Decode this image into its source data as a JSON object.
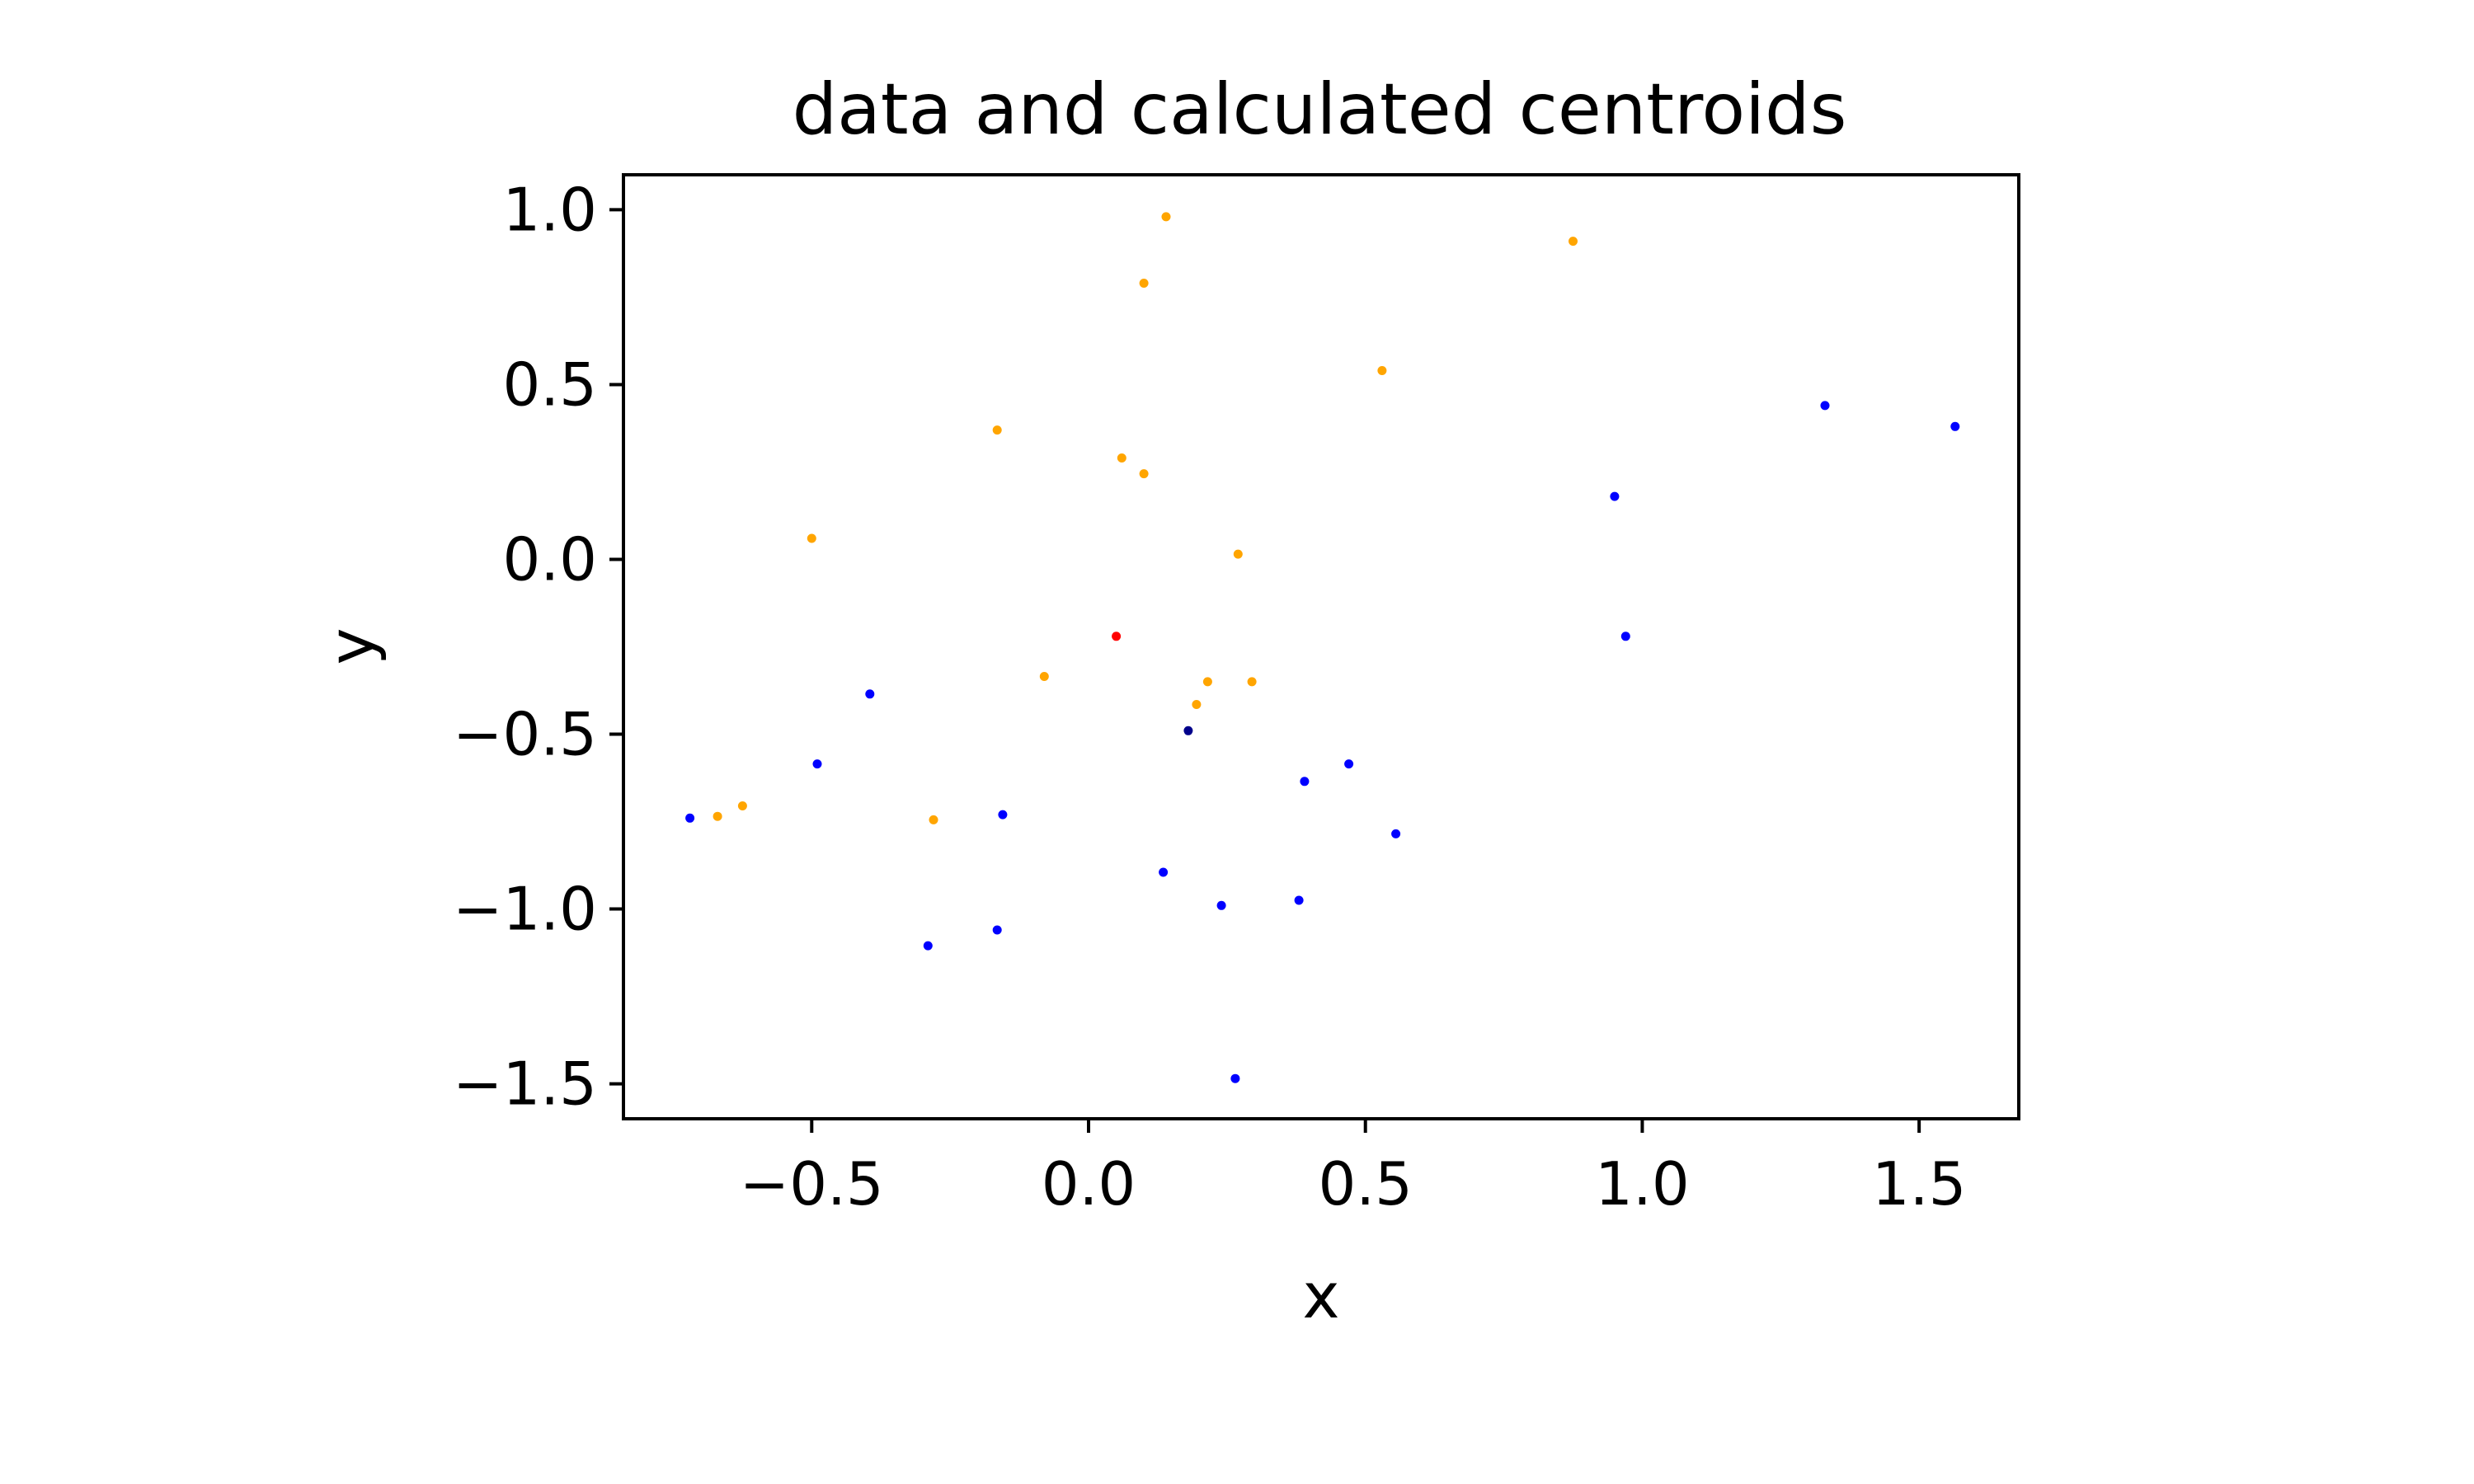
{
  "chart_data": {
    "type": "scatter",
    "title": "data and calculated centroids",
    "xlabel": "x",
    "ylabel": "y",
    "xlim": [
      -0.84,
      1.68
    ],
    "ylim": [
      -1.6,
      1.1
    ],
    "xticks": [
      -0.5,
      0.0,
      0.5,
      1.0,
      1.5
    ],
    "yticks": [
      1.0,
      0.5,
      0.0,
      -0.5,
      -1.0,
      -1.5
    ],
    "xtick_labels": [
      "−0.5",
      "0.0",
      "0.5",
      "1.0",
      "1.5"
    ],
    "ytick_labels": [
      "1.0",
      "0.5",
      "0.0",
      "−0.5",
      "−1.0",
      "−1.5"
    ],
    "grid": false,
    "series": [
      {
        "color": "#ffa500",
        "points": [
          [
            0.14,
            0.98
          ],
          [
            0.1,
            0.79
          ],
          [
            0.875,
            0.91
          ],
          [
            0.53,
            0.54
          ],
          [
            -0.165,
            0.37
          ],
          [
            0.06,
            0.29
          ],
          [
            0.1,
            0.245
          ],
          [
            -0.5,
            0.06
          ],
          [
            0.27,
            0.015
          ],
          [
            -0.08,
            -0.335
          ],
          [
            0.215,
            -0.35
          ],
          [
            0.295,
            -0.35
          ],
          [
            0.195,
            -0.415
          ],
          [
            -0.625,
            -0.705
          ],
          [
            -0.67,
            -0.735
          ],
          [
            -0.28,
            -0.745
          ]
        ]
      },
      {
        "color": "#0000ff",
        "points": [
          [
            1.33,
            0.44
          ],
          [
            1.565,
            0.38
          ],
          [
            0.95,
            0.18
          ],
          [
            0.97,
            -0.22
          ],
          [
            -0.395,
            -0.385
          ],
          [
            -0.49,
            -0.585
          ],
          [
            0.47,
            -0.585
          ],
          [
            0.39,
            -0.635
          ],
          [
            0.555,
            -0.785
          ],
          [
            -0.72,
            -0.74
          ],
          [
            -0.155,
            -0.73
          ],
          [
            0.135,
            -0.895
          ],
          [
            0.24,
            -0.99
          ],
          [
            0.38,
            -0.975
          ],
          [
            -0.165,
            -1.06
          ],
          [
            -0.29,
            -1.105
          ],
          [
            0.265,
            -1.485
          ]
        ]
      },
      {
        "color": "#ff0000",
        "points": [
          [
            0.05,
            -0.22
          ]
        ]
      },
      {
        "color": "#00008b",
        "points": [
          [
            0.18,
            -0.49
          ]
        ]
      }
    ]
  }
}
